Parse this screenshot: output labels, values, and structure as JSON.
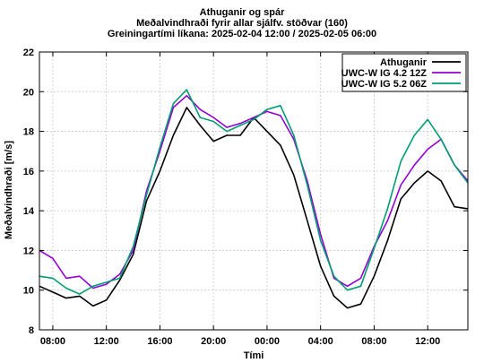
{
  "title_lines": [
    "Athuganir og spár",
    "Meðalvindhraði fyrir allar sjálfv. stöðvar (160)",
    "Greiningartími líkana: 2025-02-04 12:00 / 2025-02-05 06:00"
  ],
  "chart_data": {
    "type": "line",
    "xlabel": "Tími",
    "ylabel": "Meðalvindhraði [m/s]",
    "ylim": [
      8,
      22
    ],
    "yticks": [
      8,
      10,
      12,
      14,
      16,
      18,
      20,
      22
    ],
    "x_unit": "hours since 2025-02-04 07:00",
    "xlim": [
      0,
      32
    ],
    "xticks": [
      {
        "x": 1,
        "label": "08:00"
      },
      {
        "x": 5,
        "label": "12:00"
      },
      {
        "x": 9,
        "label": "16:00"
      },
      {
        "x": 13,
        "label": "20:00"
      },
      {
        "x": 17,
        "label": "00:00"
      },
      {
        "x": 21,
        "label": "04:00"
      },
      {
        "x": 25,
        "label": "08:00"
      },
      {
        "x": 29,
        "label": "12:00"
      }
    ],
    "grid": true,
    "legend_position": "top-right",
    "x": [
      0,
      1,
      2,
      3,
      4,
      5,
      6,
      7,
      8,
      9,
      10,
      11,
      12,
      13,
      14,
      15,
      16,
      17,
      18,
      19,
      20,
      21,
      22,
      23,
      24,
      25,
      26,
      27,
      28,
      29,
      30,
      31,
      32
    ],
    "series": [
      {
        "name": "Athuganir",
        "color": "#000000",
        "values": [
          10.2,
          9.9,
          9.6,
          9.7,
          9.2,
          9.5,
          10.5,
          11.8,
          14.5,
          16.0,
          17.8,
          19.2,
          18.3,
          17.5,
          17.8,
          17.8,
          18.7,
          18.0,
          17.3,
          15.8,
          13.5,
          11.2,
          9.7,
          9.1,
          9.3,
          10.7,
          12.5,
          14.6,
          15.4,
          16.0,
          15.5,
          14.2,
          14.1
        ]
      },
      {
        "name": "UWC-W IG 4.2 12Z",
        "color": "#9400d3",
        "values": [
          12.0,
          11.6,
          10.6,
          10.7,
          10.1,
          10.3,
          10.8,
          12.0,
          15.0,
          17.0,
          19.2,
          19.8,
          19.1,
          18.7,
          18.2,
          18.4,
          18.7,
          19.0,
          18.8,
          17.6,
          15.5,
          12.8,
          10.6,
          10.2,
          10.6,
          12.2,
          13.5,
          15.3,
          16.3,
          17.1,
          17.6,
          16.3,
          15.5
        ]
      },
      {
        "name": "UWC-W IG 5.2 06Z",
        "color": "#009e73",
        "values": [
          10.7,
          10.6,
          10.1,
          9.8,
          10.2,
          10.4,
          10.6,
          12.2,
          14.8,
          17.2,
          19.4,
          20.1,
          18.7,
          18.5,
          18.0,
          18.3,
          18.6,
          19.1,
          19.3,
          17.8,
          15.3,
          12.5,
          10.7,
          10.0,
          10.2,
          12.1,
          14.1,
          16.5,
          17.8,
          18.6,
          17.6,
          16.3,
          15.4
        ]
      }
    ]
  }
}
